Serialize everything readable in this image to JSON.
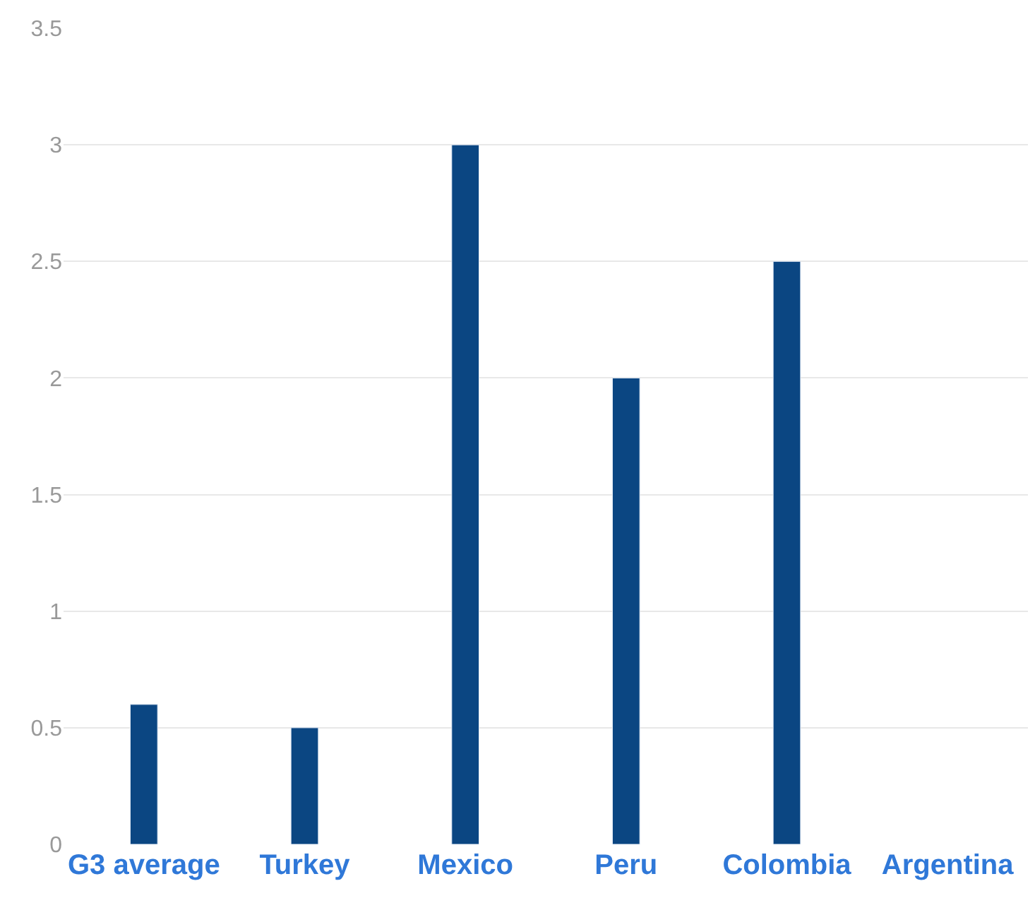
{
  "chart_data": {
    "type": "bar",
    "categories": [
      "G3 average",
      "Turkey",
      "Mexico",
      "Peru",
      "Colombia",
      "Argentina"
    ],
    "values": [
      0.6,
      0.5,
      3,
      2,
      2.5,
      null
    ],
    "color": "#0b4682",
    "ylim": [
      0,
      3.5
    ],
    "yticks": [
      0,
      0.5,
      1,
      1.5,
      2,
      2.5,
      3,
      3.5
    ],
    "grid": "y",
    "legend": false
  }
}
